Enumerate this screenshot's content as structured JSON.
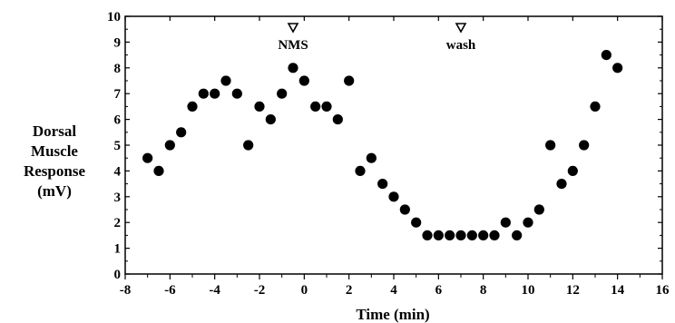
{
  "chart_data": {
    "type": "scatter",
    "xlabel": "Time (min)",
    "ylabel_lines": [
      "Dorsal",
      "Muscle",
      "Response",
      "(mV)"
    ],
    "xlim": [
      -8,
      16
    ],
    "ylim": [
      0,
      10
    ],
    "x_ticks": [
      -8,
      -6,
      -4,
      -2,
      0,
      2,
      4,
      6,
      8,
      10,
      12,
      14,
      16
    ],
    "y_ticks": [
      0,
      1,
      2,
      3,
      4,
      5,
      6,
      7,
      8,
      9,
      10
    ],
    "grid": false,
    "marker_color": "#000000",
    "annotations": [
      {
        "text": "NMS",
        "x": -0.5,
        "marker": "open-down-triangle"
      },
      {
        "text": "wash",
        "x": 7,
        "marker": "open-down-triangle"
      }
    ],
    "points": [
      {
        "x": -7,
        "y": 4.5
      },
      {
        "x": -6.5,
        "y": 4
      },
      {
        "x": -6,
        "y": 5
      },
      {
        "x": -5.5,
        "y": 5.5
      },
      {
        "x": -5,
        "y": 6.5
      },
      {
        "x": -4.5,
        "y": 7
      },
      {
        "x": -4,
        "y": 7
      },
      {
        "x": -3.5,
        "y": 7.5
      },
      {
        "x": -3,
        "y": 7
      },
      {
        "x": -2.5,
        "y": 5
      },
      {
        "x": -2,
        "y": 6.5
      },
      {
        "x": -1.5,
        "y": 6
      },
      {
        "x": -1,
        "y": 7
      },
      {
        "x": -0.5,
        "y": 8
      },
      {
        "x": 0,
        "y": 7.5
      },
      {
        "x": 0.5,
        "y": 6.5
      },
      {
        "x": 1,
        "y": 6.5
      },
      {
        "x": 1.5,
        "y": 6
      },
      {
        "x": 2,
        "y": 7.5
      },
      {
        "x": 2.5,
        "y": 4
      },
      {
        "x": 3,
        "y": 4.5
      },
      {
        "x": 3.5,
        "y": 3.5
      },
      {
        "x": 4,
        "y": 3
      },
      {
        "x": 4.5,
        "y": 2.5
      },
      {
        "x": 5,
        "y": 2
      },
      {
        "x": 5.5,
        "y": 1.5
      },
      {
        "x": 6,
        "y": 1.5
      },
      {
        "x": 6.5,
        "y": 1.5
      },
      {
        "x": 7,
        "y": 1.5
      },
      {
        "x": 7.5,
        "y": 1.5
      },
      {
        "x": 8,
        "y": 1.5
      },
      {
        "x": 8.5,
        "y": 1.5
      },
      {
        "x": 9,
        "y": 2
      },
      {
        "x": 9.5,
        "y": 1.5
      },
      {
        "x": 10,
        "y": 2
      },
      {
        "x": 10.5,
        "y": 2.5
      },
      {
        "x": 11,
        "y": 5
      },
      {
        "x": 11.5,
        "y": 3.5
      },
      {
        "x": 12,
        "y": 4
      },
      {
        "x": 12.5,
        "y": 5
      },
      {
        "x": 13,
        "y": 6.5
      },
      {
        "x": 13.5,
        "y": 8.5
      },
      {
        "x": 14,
        "y": 8
      }
    ]
  }
}
